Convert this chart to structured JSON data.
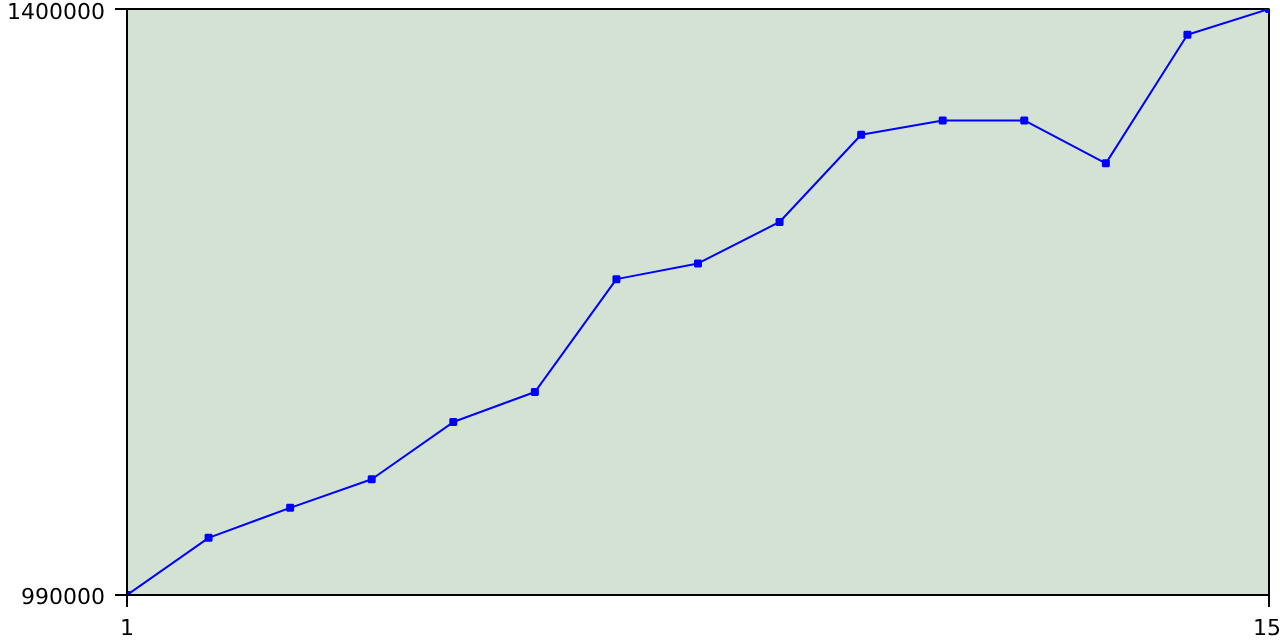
{
  "chart_data": {
    "type": "line",
    "x": [
      1,
      2,
      3,
      4,
      5,
      6,
      7,
      8,
      9,
      10,
      11,
      12,
      13,
      14,
      15
    ],
    "series": [
      {
        "color": "#0000ff",
        "values": [
          990000,
          1030000,
          1051000,
          1071000,
          1111000,
          1132000,
          1211000,
          1222000,
          1251000,
          1312000,
          1322000,
          1322000,
          1292000,
          1382000,
          1400000
        ]
      }
    ],
    "xlim": [
      1,
      15
    ],
    "ylim": [
      990000,
      1400000
    ],
    "xticks": [
      1,
      15
    ],
    "yticks": [
      {
        "value": 990000,
        "label": "990000"
      },
      {
        "value": 1400000,
        "label": "1400000"
      }
    ],
    "marker": "square",
    "line_style": "solid"
  }
}
